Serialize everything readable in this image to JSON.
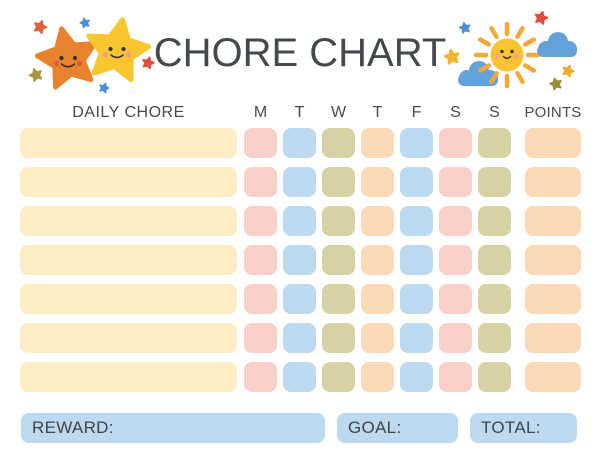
{
  "title": "CHORE CHART",
  "header": {
    "chore_column": "DAILY CHORE",
    "day_columns": [
      "M",
      "T",
      "W",
      "T",
      "F",
      "S",
      "S"
    ],
    "points_column": "POINTS"
  },
  "grid": {
    "row_count": 7,
    "chore_cell_color": "yellow",
    "day_cell_colors": [
      "pink",
      "blue",
      "olive",
      "peach",
      "blue",
      "pink",
      "olive"
    ],
    "points_cell_color": "peach"
  },
  "palette": {
    "yellow": "#FCEDC5",
    "pink": "#F8CFC9",
    "blue": "#BDD9EF",
    "olive": "#D6D2A3",
    "peach": "#FBD9B7",
    "footer_blue": "#BDD9EF",
    "text": "#45494E",
    "star_orange": "#E8822C",
    "star_yellow": "#FBC52F",
    "sun_body": "#FBC331",
    "sun_rays": "#F3A83B",
    "cloud_blue": "#62A1DA"
  },
  "footer": {
    "reward_label": "REWARD:",
    "goal_label": "GOAL:",
    "total_label": "TOTAL:"
  },
  "decorations": {
    "left": "two-smiling-stars",
    "right": "smiling-sun-with-clouds"
  }
}
